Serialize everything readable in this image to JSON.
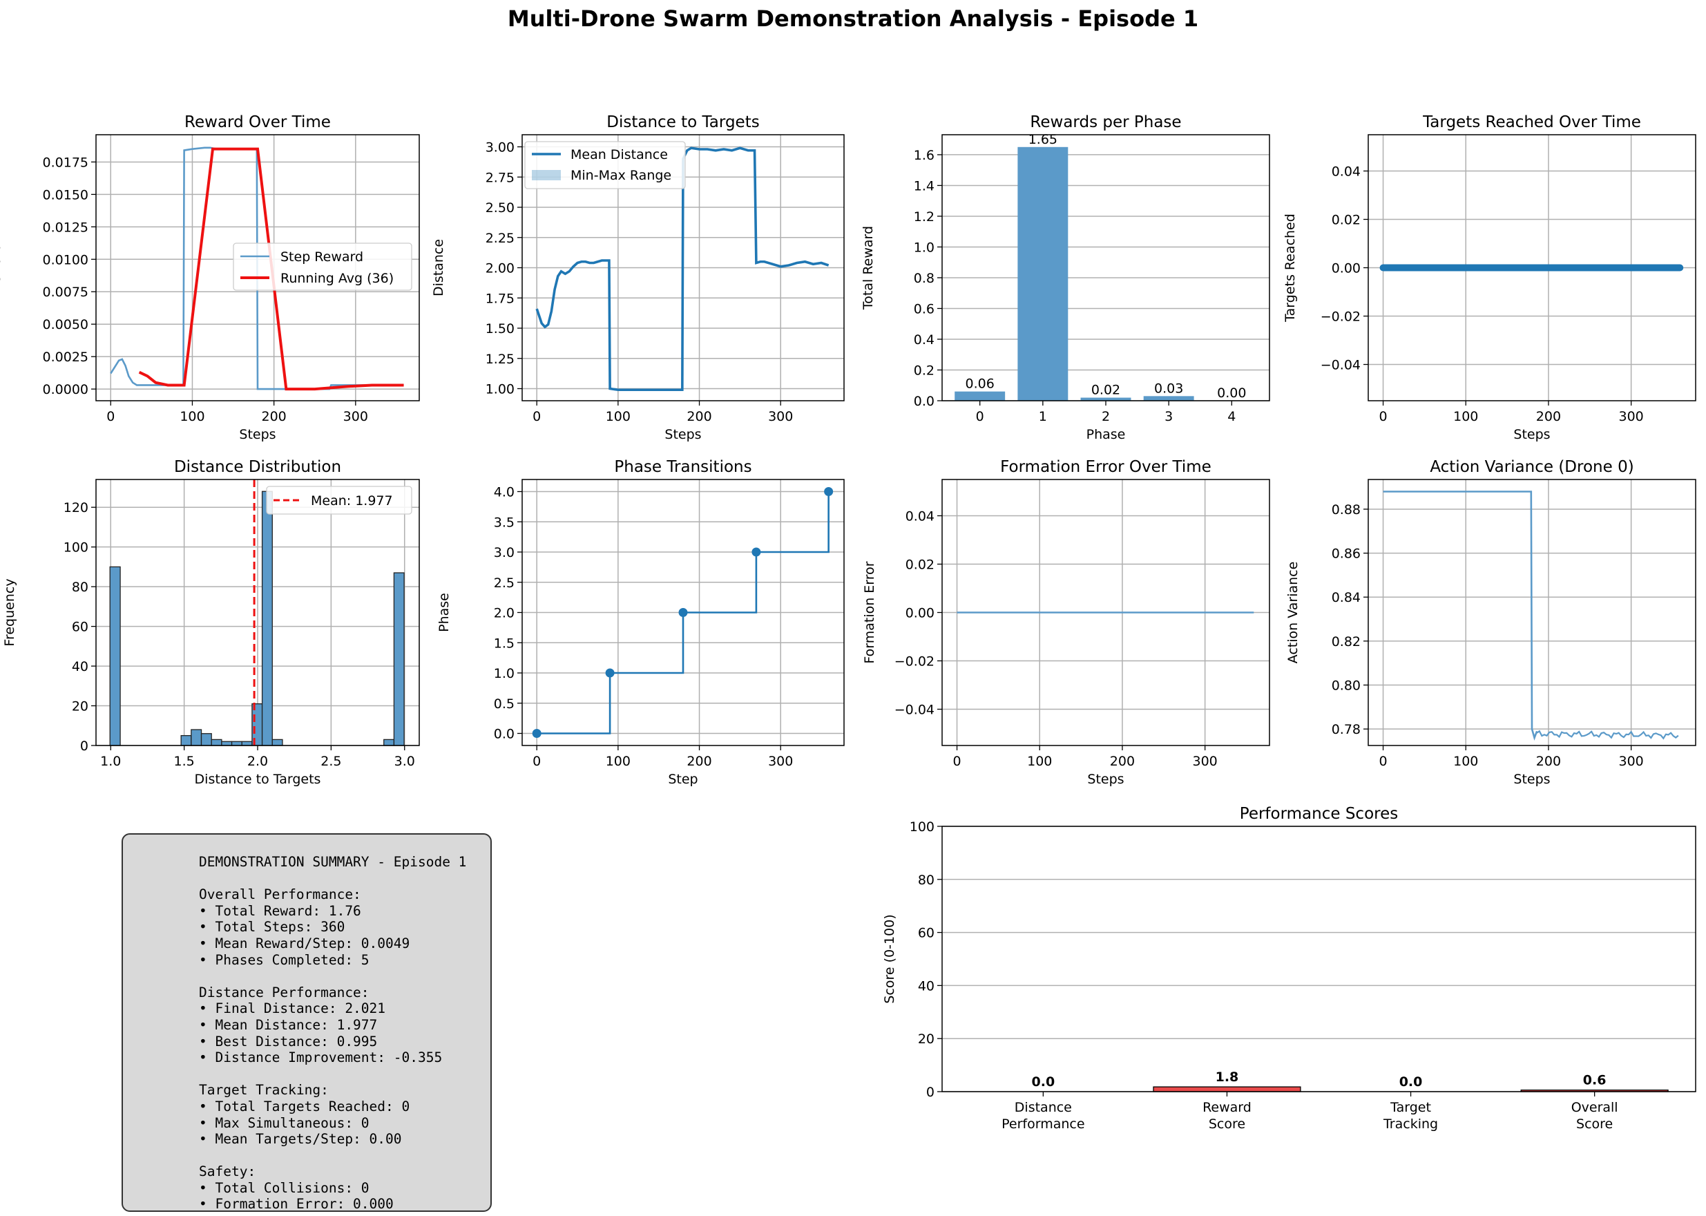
{
  "suptitle": "Multi-Drone Swarm Demonstration Analysis - Episode 1",
  "colors": {
    "blue": "#1f77b4",
    "bar_blue": "#5b9ac9",
    "red": "#ee1111",
    "grid": "#b0b0b0"
  },
  "chart_data": [
    {
      "type": "line",
      "title": "Reward Over Time",
      "xlabel": "Steps",
      "ylabel": "Reward",
      "xlim": [
        -18,
        378
      ],
      "ylim": [
        -0.0009,
        0.0196
      ],
      "yticks": [
        0,
        0.0025,
        0.005,
        0.0075,
        0.01,
        0.0125,
        0.015,
        0.0175
      ],
      "ytick_labels": [
        "0.0000",
        "0.0025",
        "0.0050",
        "0.0075",
        "0.0100",
        "0.0125",
        "0.0150",
        "0.0175"
      ],
      "xticks": [
        0,
        100,
        200,
        300
      ],
      "xtick_labels": [
        "0",
        "100",
        "200",
        "300"
      ],
      "grid": true,
      "legend": "center-right",
      "series": [
        {
          "name": "Step Reward",
          "x": [
            0,
            5,
            10,
            14,
            18,
            22,
            27,
            32,
            40,
            60,
            89,
            90,
            100,
            115,
            122,
            130,
            140,
            160,
            179,
            180,
            200,
            268,
            270,
            300,
            320,
            340,
            359
          ],
          "y": [
            0.0012,
            0.0017,
            0.0022,
            0.0023,
            0.0018,
            0.001,
            0.0005,
            0.0003,
            0.0003,
            0.0003,
            0.0003,
            0.0184,
            0.0185,
            0.0186,
            0.0186,
            0.0185,
            0.0185,
            0.0185,
            0.0185,
            0,
            0,
            0,
            0.0003,
            0.0003,
            0.0003,
            0.0003,
            0.0003
          ]
        },
        {
          "name": "Running Avg (36)",
          "x": [
            35,
            45,
            55,
            70,
            90,
            125,
            150,
            170,
            180,
            215,
            250,
            290,
            320,
            359
          ],
          "y": [
            0.0013,
            0.001,
            0.0005,
            0.0003,
            0.0003,
            0.0185,
            0.0185,
            0.0185,
            0.0185,
            0,
            0,
            0.0002,
            0.0003,
            0.0003
          ]
        }
      ]
    },
    {
      "type": "line",
      "title": "Distance to Targets",
      "xlabel": "Steps",
      "ylabel": "Distance",
      "xlim": [
        -18,
        378
      ],
      "ylim": [
        0.9,
        3.1
      ],
      "yticks": [
        1,
        1.25,
        1.5,
        1.75,
        2,
        2.25,
        2.5,
        2.75,
        3
      ],
      "ytick_labels": [
        "1.00",
        "1.25",
        "1.50",
        "1.75",
        "2.00",
        "2.25",
        "2.50",
        "2.75",
        "3.00"
      ],
      "xticks": [
        0,
        100,
        200,
        300
      ],
      "xtick_labels": [
        "0",
        "100",
        "200",
        "300"
      ],
      "grid": true,
      "legend": "top-left",
      "series": [
        {
          "name": "Mean Distance",
          "x": [
            0,
            3,
            6,
            10,
            14,
            18,
            22,
            26,
            30,
            35,
            40,
            45,
            50,
            55,
            60,
            65,
            70,
            75,
            80,
            85,
            89,
            90,
            100,
            120,
            140,
            160,
            179,
            180,
            185,
            190,
            200,
            210,
            220,
            230,
            240,
            250,
            260,
            268,
            270,
            275,
            280,
            290,
            300,
            310,
            320,
            330,
            340,
            350,
            359
          ],
          "y": [
            1.66,
            1.6,
            1.54,
            1.51,
            1.53,
            1.64,
            1.82,
            1.93,
            1.97,
            1.95,
            1.97,
            2.01,
            2.04,
            2.05,
            2.05,
            2.04,
            2.04,
            2.05,
            2.06,
            2.06,
            2.06,
            1.0,
            0.99,
            0.99,
            0.99,
            0.99,
            0.99,
            2.9,
            2.97,
            2.99,
            2.98,
            2.98,
            2.97,
            2.98,
            2.97,
            2.99,
            2.97,
            2.97,
            2.04,
            2.05,
            2.05,
            2.03,
            2.01,
            2.02,
            2.04,
            2.05,
            2.03,
            2.04,
            2.02
          ]
        },
        {
          "name": "Min-Max Range",
          "x": [],
          "y": []
        }
      ]
    },
    {
      "type": "bar",
      "title": "Rewards per Phase",
      "xlabel": "Phase",
      "ylabel": "Total Reward",
      "categories": [
        "0",
        "1",
        "2",
        "3",
        "4"
      ],
      "values": [
        0.06,
        1.65,
        0.02,
        0.03,
        0.0
      ],
      "labels": [
        "0.06",
        "1.65",
        "0.02",
        "0.03",
        "0.00"
      ],
      "ylim": [
        0,
        1.73
      ],
      "yticks": [
        0,
        0.2,
        0.4,
        0.6,
        0.8,
        1.0,
        1.2,
        1.4,
        1.6
      ],
      "ytick_labels": [
        "0.0",
        "0.2",
        "0.4",
        "0.6",
        "0.8",
        "1.0",
        "1.2",
        "1.4",
        "1.6"
      ],
      "grid": true
    },
    {
      "type": "line",
      "title": "Targets Reached Over Time",
      "xlabel": "Steps",
      "ylabel": "Targets Reached",
      "xlim": [
        -18,
        378
      ],
      "ylim": [
        -0.055,
        0.055
      ],
      "yticks": [
        -0.04,
        -0.02,
        0,
        0.02,
        0.04
      ],
      "ytick_labels": [
        "−0.04",
        "−0.02",
        "0.00",
        "0.02",
        "0.04"
      ],
      "xticks": [
        0,
        100,
        200,
        300
      ],
      "xtick_labels": [
        "0",
        "100",
        "200",
        "300"
      ],
      "grid": true,
      "series": [
        {
          "x": [
            0,
            359
          ],
          "y": [
            0,
            0
          ],
          "markers": true
        }
      ]
    },
    {
      "type": "bar",
      "title": "Distance Distribution",
      "xlabel": "Distance to Targets",
      "ylabel": "Frequency",
      "xlim": [
        0.9,
        3.1
      ],
      "ylim": [
        0,
        134
      ],
      "bin_edges": [
        0.995,
        1.065,
        1.134,
        1.203,
        1.272,
        1.341,
        1.41,
        1.479,
        1.548,
        1.617,
        1.686,
        1.755,
        1.824,
        1.893,
        1.962,
        2.031,
        2.1,
        2.169,
        2.238,
        2.307,
        2.376,
        2.445,
        2.514,
        2.583,
        2.652,
        2.721,
        2.79,
        2.859,
        2.928,
        2.997
      ],
      "counts": [
        90,
        0,
        0,
        0,
        0,
        0,
        0,
        5,
        8,
        6,
        3,
        2,
        2,
        2,
        21,
        128,
        3,
        0,
        0,
        0,
        0,
        0,
        0,
        0,
        0,
        0,
        0,
        3,
        87
      ],
      "xticks": [
        1.0,
        1.5,
        2.0,
        2.5,
        3.0
      ],
      "xtick_labels": [
        "1.0",
        "1.5",
        "2.0",
        "2.5",
        "3.0"
      ],
      "yticks": [
        0,
        20,
        40,
        60,
        80,
        100,
        120
      ],
      "ytick_labels": [
        "0",
        "20",
        "40",
        "60",
        "80",
        "100",
        "120"
      ],
      "mean": 1.977,
      "mean_label": "Mean: 1.977",
      "grid": true,
      "legend": "top-right"
    },
    {
      "type": "line",
      "title": "Phase Transitions",
      "xlabel": "Step",
      "ylabel": "Phase",
      "xlim": [
        -18,
        378
      ],
      "ylim": [
        -0.2,
        4.2
      ],
      "yticks": [
        0,
        0.5,
        1,
        1.5,
        2,
        2.5,
        3,
        3.5,
        4
      ],
      "ytick_labels": [
        "0.0",
        "0.5",
        "1.0",
        "1.5",
        "2.0",
        "2.5",
        "3.0",
        "3.5",
        "4.0"
      ],
      "xticks": [
        0,
        100,
        200,
        300
      ],
      "xtick_labels": [
        "0",
        "100",
        "200",
        "300"
      ],
      "grid": true,
      "series": [
        {
          "x": [
            0,
            90,
            180,
            270,
            359
          ],
          "y": [
            0,
            1,
            2,
            3,
            4
          ],
          "step": true
        }
      ]
    },
    {
      "type": "line",
      "title": "Formation Error Over Time",
      "xlabel": "Steps",
      "ylabel": "Formation Error",
      "xlim": [
        -18,
        378
      ],
      "ylim": [
        -0.055,
        0.055
      ],
      "yticks": [
        -0.04,
        -0.02,
        0,
        0.02,
        0.04
      ],
      "ytick_labels": [
        "−0.04",
        "−0.02",
        "0.00",
        "0.02",
        "0.04"
      ],
      "xticks": [
        0,
        100,
        200,
        300
      ],
      "xtick_labels": [
        "0",
        "100",
        "200",
        "300"
      ],
      "grid": true,
      "series": [
        {
          "x": [
            0,
            359
          ],
          "y": [
            0,
            0
          ]
        }
      ]
    },
    {
      "type": "line",
      "title": "Action Variance (Drone 0)",
      "xlabel": "Steps",
      "ylabel": "Action Variance",
      "xlim": [
        -18,
        378
      ],
      "ylim": [
        0.7725,
        0.8935
      ],
      "yticks": [
        0.78,
        0.8,
        0.82,
        0.84,
        0.86,
        0.88
      ],
      "ytick_labels": [
        "0.78",
        "0.80",
        "0.82",
        "0.84",
        "0.86",
        "0.88"
      ],
      "xticks": [
        0,
        100,
        200,
        300
      ],
      "xtick_labels": [
        "0",
        "100",
        "200",
        "300"
      ],
      "grid": true,
      "series": [
        {
          "x": [
            0,
            179,
            180,
            183,
            186,
            190,
            200,
            215,
            230,
            245,
            260,
            270,
            280,
            290,
            300,
            310,
            320,
            330,
            340,
            350,
            359
          ],
          "y": [
            0.888,
            0.888,
            0.78,
            0.776,
            0.779,
            0.778,
            0.779,
            0.778,
            0.779,
            0.778,
            0.779,
            0.777,
            0.778,
            0.777,
            0.777,
            0.776,
            0.777,
            0.777,
            0.777,
            0.777,
            0.777
          ]
        }
      ]
    },
    {
      "type": "bar",
      "title": "Performance Scores",
      "ylabel": "Score (0-100)",
      "categories": [
        "Distance\nPerformance",
        "Reward\nScore",
        "Target\nTracking",
        "Overall\nScore"
      ],
      "values": [
        0.0,
        1.8,
        0.0,
        0.6
      ],
      "labels": [
        "0.0",
        "1.8",
        "0.0",
        "0.6"
      ],
      "ylim": [
        0,
        100
      ],
      "yticks": [
        0,
        20,
        40,
        60,
        80,
        100
      ],
      "ytick_labels": [
        "0",
        "20",
        "40",
        "60",
        "80",
        "100"
      ],
      "bar_colors": [
        "#e84a4a",
        "#e84a4a",
        "#e84a4a",
        "#e84a4a"
      ],
      "grid": true
    }
  ],
  "summary": {
    "lines": [
      "DEMONSTRATION SUMMARY - Episode 1",
      "",
      "Overall Performance:",
      "• Total Reward: 1.76",
      "• Total Steps: 360",
      "• Mean Reward/Step: 0.0049",
      "• Phases Completed: 5",
      "",
      "Distance Performance:",
      "• Final Distance: 2.021",
      "• Mean Distance: 1.977",
      "• Best Distance: 0.995",
      "• Distance Improvement: -0.355",
      "",
      "Target Tracking:",
      "• Total Targets Reached: 0",
      "• Max Simultaneous: 0",
      "• Mean Targets/Step: 0.00",
      "",
      "Safety:",
      "• Total Collisions: 0",
      "• Formation Error: 0.000"
    ]
  }
}
